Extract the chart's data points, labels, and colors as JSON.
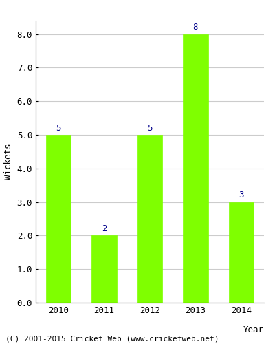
{
  "categories": [
    "2010",
    "2011",
    "2012",
    "2013",
    "2014"
  ],
  "values": [
    5,
    2,
    5,
    8,
    3
  ],
  "bar_color": "#7FFF00",
  "bar_edge_color": "#7FFF00",
  "label_color": "#00008B",
  "label_fontsize": 9,
  "xlabel": "Year",
  "ylabel": "Wickets",
  "ylim": [
    0.0,
    8.4
  ],
  "yticks": [
    0.0,
    1.0,
    2.0,
    3.0,
    4.0,
    5.0,
    6.0,
    7.0,
    8.0
  ],
  "grid_color": "#cccccc",
  "background_color": "#ffffff",
  "footer_text": "(C) 2001-2015 Cricket Web (www.cricketweb.net)",
  "footer_fontsize": 8,
  "axis_label_fontsize": 9,
  "tick_fontsize": 9,
  "bar_width": 0.55
}
